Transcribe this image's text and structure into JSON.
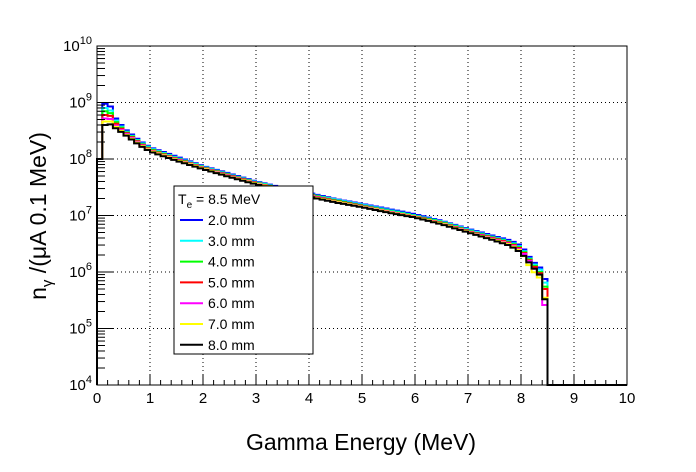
{
  "chart_data": {
    "type": "line",
    "drawstyle": "steps",
    "xlabel": "Gamma Energy (MeV)",
    "ylabel": "n_γ /(μA 0.1 MeV)",
    "ylabel_parts": {
      "base": "n",
      "subscript": "γ",
      "rest": " /(μA 0.1 MeV)"
    },
    "xlim": [
      0,
      10
    ],
    "ylim": [
      10000,
      10000000000
    ],
    "ylog": true,
    "grid": true,
    "x_ticks": [
      "0",
      "1",
      "2",
      "3",
      "4",
      "5",
      "6",
      "7",
      "8",
      "9",
      "10"
    ],
    "y_ticks": [
      {
        "base": "10",
        "exp": "4",
        "value": 10000
      },
      {
        "base": "10",
        "exp": "5",
        "value": 100000
      },
      {
        "base": "10",
        "exp": "6",
        "value": 1000000
      },
      {
        "base": "10",
        "exp": "7",
        "value": 10000000
      },
      {
        "base": "10",
        "exp": "8",
        "value": 100000000
      },
      {
        "base": "10",
        "exp": "9",
        "value": 1000000000
      },
      {
        "base": "10",
        "exp": "10",
        "value": 10000000000
      }
    ],
    "legend": {
      "placement": "lower-left",
      "header_base": "T",
      "header_sub": "e",
      "header_rest": " = 8.5 MeV"
    },
    "bins": {
      "x_start": 0.0,
      "width": 0.1,
      "count": 100
    },
    "series": [
      {
        "name": "2.0 mm",
        "color": "#0000ff",
        "endpoint": 8.5,
        "anchors": [
          [
            0.05,
            100000000.0
          ],
          [
            0.15,
            950000000.0
          ],
          [
            0.25,
            850000000.0
          ],
          [
            0.35,
            520000000.0
          ],
          [
            0.5,
            350000000.0
          ],
          [
            0.8,
            210000000.0
          ],
          [
            1.0,
            160000000.0
          ],
          [
            1.5,
            110000000.0
          ],
          [
            2.0,
            75000000.0
          ],
          [
            2.5,
            55000000.0
          ],
          [
            3.0,
            40000000.0
          ],
          [
            3.5,
            31000000.0
          ],
          [
            4.0,
            25000000.0
          ],
          [
            4.5,
            19500000.0
          ],
          [
            5.0,
            16000000.0
          ],
          [
            5.5,
            13000000.0
          ],
          [
            6.0,
            10500000.0
          ],
          [
            6.5,
            8000000.0
          ],
          [
            7.0,
            5800000.0
          ],
          [
            7.5,
            4300000.0
          ],
          [
            7.8,
            3600000.0
          ],
          [
            8.0,
            2900000.0
          ],
          [
            8.2,
            1600000.0
          ],
          [
            8.35,
            1200000.0
          ],
          [
            8.45,
            750000.0
          ]
        ]
      },
      {
        "name": "3.0 mm",
        "color": "#00ffff",
        "endpoint": 8.5,
        "anchors": [
          [
            0.05,
            100000000.0
          ],
          [
            0.15,
            800000000.0
          ],
          [
            0.25,
            720000000.0
          ],
          [
            0.35,
            480000000.0
          ],
          [
            0.5,
            330000000.0
          ],
          [
            0.8,
            200000000.0
          ],
          [
            1.0,
            155000000.0
          ],
          [
            1.5,
            105000000.0
          ],
          [
            2.0,
            73000000.0
          ],
          [
            2.5,
            53000000.0
          ],
          [
            3.0,
            39000000.0
          ],
          [
            3.5,
            30000000.0
          ],
          [
            4.0,
            24000000.0
          ],
          [
            4.5,
            19000000.0
          ],
          [
            5.0,
            15500000.0
          ],
          [
            5.5,
            12500000.0
          ],
          [
            6.0,
            10000000.0
          ],
          [
            6.5,
            7800000.0
          ],
          [
            7.0,
            5600000.0
          ],
          [
            7.5,
            4100000.0
          ],
          [
            7.8,
            3400000.0
          ],
          [
            8.0,
            2700000.0
          ],
          [
            8.2,
            1500000.0
          ],
          [
            8.35,
            1100000.0
          ],
          [
            8.45,
            650000.0
          ]
        ]
      },
      {
        "name": "4.0 mm",
        "color": "#00ff00",
        "endpoint": 8.5,
        "anchors": [
          [
            0.05,
            100000000.0
          ],
          [
            0.15,
            700000000.0
          ],
          [
            0.25,
            650000000.0
          ],
          [
            0.35,
            450000000.0
          ],
          [
            0.5,
            320000000.0
          ],
          [
            0.8,
            195000000.0
          ],
          [
            1.0,
            150000000.0
          ],
          [
            1.5,
            102000000.0
          ],
          [
            2.0,
            71000000.0
          ],
          [
            2.5,
            52000000.0
          ],
          [
            3.0,
            38000000.0
          ],
          [
            3.5,
            29500000.0
          ],
          [
            4.0,
            23500000.0
          ],
          [
            4.5,
            18500000.0
          ],
          [
            5.0,
            15000000.0
          ],
          [
            5.5,
            12000000.0
          ],
          [
            6.0,
            9800000.0
          ],
          [
            6.5,
            7600000.0
          ],
          [
            7.0,
            5400000.0
          ],
          [
            7.5,
            4000000.0
          ],
          [
            7.8,
            3300000.0
          ],
          [
            8.0,
            2600000.0
          ],
          [
            8.2,
            1450000.0
          ],
          [
            8.35,
            1000000.0
          ],
          [
            8.45,
            550000.0
          ]
        ]
      },
      {
        "name": "5.0 mm",
        "color": "#ff0000",
        "endpoint": 8.5,
        "anchors": [
          [
            0.05,
            100000000.0
          ],
          [
            0.15,
            600000000.0
          ],
          [
            0.25,
            580000000.0
          ],
          [
            0.35,
            420000000.0
          ],
          [
            0.5,
            310000000.0
          ],
          [
            0.8,
            190000000.0
          ],
          [
            1.0,
            145000000.0
          ],
          [
            1.5,
            100000000.0
          ],
          [
            2.0,
            70000000.0
          ],
          [
            2.5,
            51000000.0
          ],
          [
            3.0,
            37500000.0
          ],
          [
            3.5,
            29000000.0
          ],
          [
            4.0,
            23000000.0
          ],
          [
            4.5,
            18000000.0
          ],
          [
            5.0,
            14700000.0
          ],
          [
            5.5,
            11800000.0
          ],
          [
            6.0,
            9600000.0
          ],
          [
            6.5,
            7400000.0
          ],
          [
            7.0,
            5300000.0
          ],
          [
            7.5,
            3900000.0
          ],
          [
            7.8,
            3200000.0
          ],
          [
            8.0,
            2500000.0
          ],
          [
            8.2,
            1400000.0
          ],
          [
            8.35,
            950000.0
          ],
          [
            8.45,
            500000.0
          ]
        ]
      },
      {
        "name": "6.0 mm",
        "color": "#ff00ff",
        "endpoint": 8.5,
        "anchors": [
          [
            0.05,
            100000000.0
          ],
          [
            0.15,
            520000000.0
          ],
          [
            0.25,
            510000000.0
          ],
          [
            0.35,
            390000000.0
          ],
          [
            0.5,
            300000000.0
          ],
          [
            0.8,
            185000000.0
          ],
          [
            1.0,
            142000000.0
          ],
          [
            1.5,
            98000000.0
          ],
          [
            2.0,
            69000000.0
          ],
          [
            2.5,
            50000000.0
          ],
          [
            3.0,
            37000000.0
          ],
          [
            3.5,
            28500000.0
          ],
          [
            4.0,
            22500000.0
          ],
          [
            4.5,
            17700000.0
          ],
          [
            5.0,
            14500000.0
          ],
          [
            5.5,
            11700000.0
          ],
          [
            6.0,
            9500000.0
          ],
          [
            6.5,
            7300000.0
          ],
          [
            7.0,
            5200000.0
          ],
          [
            7.5,
            3800000.0
          ],
          [
            7.8,
            3100000.0
          ],
          [
            8.0,
            2400000.0
          ],
          [
            8.2,
            1350000.0
          ],
          [
            8.35,
            800000.0
          ],
          [
            8.45,
            260000.0
          ]
        ]
      },
      {
        "name": "7.0 mm",
        "color": "#ffff00",
        "endpoint": 8.5,
        "anchors": [
          [
            0.05,
            100000000.0
          ],
          [
            0.15,
            460000000.0
          ],
          [
            0.25,
            460000000.0
          ],
          [
            0.35,
            370000000.0
          ],
          [
            0.5,
            290000000.0
          ],
          [
            0.8,
            180000000.0
          ],
          [
            1.0,
            140000000.0
          ],
          [
            1.5,
            96000000.0
          ],
          [
            2.0,
            68000000.0
          ],
          [
            2.5,
            49000000.0
          ],
          [
            3.0,
            36500000.0
          ],
          [
            3.5,
            28000000.0
          ],
          [
            4.0,
            22000000.0
          ],
          [
            4.5,
            17500000.0
          ],
          [
            5.0,
            14300000.0
          ],
          [
            5.5,
            11500000.0
          ],
          [
            6.0,
            9400000.0
          ],
          [
            6.5,
            7200000.0
          ],
          [
            7.0,
            5100000.0
          ],
          [
            7.5,
            3700000.0
          ],
          [
            7.8,
            3000000.0
          ],
          [
            8.0,
            2300000.0
          ],
          [
            8.2,
            1100000.0
          ],
          [
            8.35,
            800000.0
          ],
          [
            8.45,
            350000.0
          ]
        ]
      },
      {
        "name": "8.0 mm",
        "color": "#000000",
        "endpoint": 8.5,
        "anchors": [
          [
            0.05,
            100000000.0
          ],
          [
            0.15,
            400000000.0
          ],
          [
            0.25,
            410000000.0
          ],
          [
            0.35,
            350000000.0
          ],
          [
            0.5,
            280000000.0
          ],
          [
            0.8,
            175000000.0
          ],
          [
            1.0,
            135000000.0
          ],
          [
            1.5,
            93000000.0
          ],
          [
            2.0,
            66000000.0
          ],
          [
            2.5,
            48000000.0
          ],
          [
            3.0,
            35500000.0
          ],
          [
            3.5,
            27500000.0
          ],
          [
            4.0,
            21500000.0
          ],
          [
            4.5,
            17000000.0
          ],
          [
            5.0,
            14000000.0
          ],
          [
            5.5,
            11200000.0
          ],
          [
            6.0,
            9200000.0
          ],
          [
            6.5,
            7000000.0
          ],
          [
            7.0,
            5000000.0
          ],
          [
            7.5,
            3600000.0
          ],
          [
            7.8,
            2900000.0
          ],
          [
            8.0,
            2200000.0
          ],
          [
            8.2,
            1300000.0
          ],
          [
            8.35,
            900000.0
          ],
          [
            8.45,
            330000.0
          ]
        ]
      }
    ]
  }
}
